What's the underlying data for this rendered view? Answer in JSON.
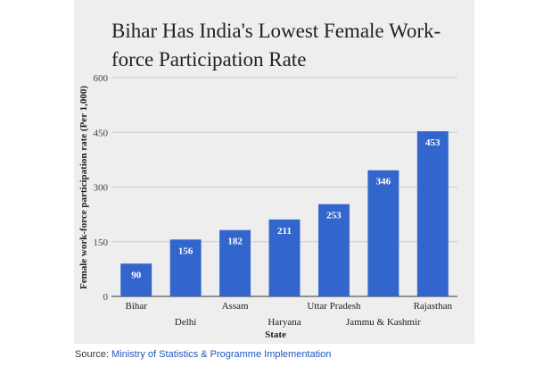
{
  "chart_data": {
    "type": "bar",
    "title_lines": [
      "Bihar Has India's Lowest Female Work-",
      "force Participation Rate"
    ],
    "xlabel": "State",
    "ylabel": "Female work-force participation rate (Per 1,000)",
    "categories": [
      "Bihar",
      "Delhi",
      "Assam",
      "Haryana",
      "Uttar Pradesh",
      "Jammu & Kashmir",
      "Rajasthan"
    ],
    "values": [
      90,
      156,
      182,
      211,
      253,
      346,
      453
    ],
    "ylim": [
      0,
      600
    ],
    "yticks": [
      0,
      150,
      300,
      450,
      600
    ],
    "bar_color": "#3366cc",
    "grid": true
  },
  "source": {
    "prefix": "Source:",
    "link_text": "Ministry of Statistics & Programme Implementation",
    "link_color": "#2255bb"
  }
}
